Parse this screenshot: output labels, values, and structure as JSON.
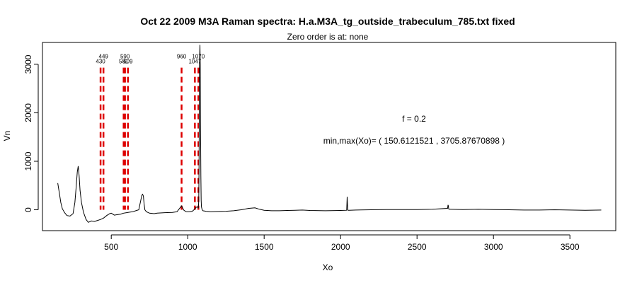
{
  "chart_data": {
    "type": "line",
    "title": "Oct 22 2009 M3A Raman spectra: H.a.M3A_tg_outside_trabeculum_785.txt fixed",
    "subtitle": "Zero order is at:  none",
    "xlabel": "Xo",
    "ylabel": "Vn",
    "xlim": [
      50,
      3800
    ],
    "ylim": [
      -430,
      3450
    ],
    "x_ticks": [
      500,
      1000,
      1500,
      2000,
      2500,
      3000,
      3500
    ],
    "y_ticks": [
      0,
      1000,
      2000,
      3000
    ],
    "annotations": {
      "f_text": "f =  0.2",
      "minmax_text": "min,max(Xo)= ( 150.6121521 , 3705.87670898 )"
    },
    "peak_color": "#dd0000",
    "line_color": "#000000",
    "peaks": [
      {
        "x": 430,
        "label": "430"
      },
      {
        "x": 449,
        "label": "449"
      },
      {
        "x": 581,
        "label": "581"
      },
      {
        "x": 590,
        "label": "590"
      },
      {
        "x": 609,
        "label": "609"
      },
      {
        "x": 960,
        "label": "960"
      },
      {
        "x": 1047,
        "label": "1047"
      },
      {
        "x": 1070,
        "label": "1070"
      }
    ],
    "series": [
      {
        "x": [
          150,
          160,
          170,
          180,
          195,
          210,
          230,
          250,
          262,
          270,
          278,
          284,
          290,
          296,
          305,
          318,
          335,
          350,
          370,
          390,
          410,
          430,
          450,
          470,
          490,
          500,
          510,
          520,
          540,
          560,
          580,
          600,
          620,
          640,
          660,
          680,
          700,
          705,
          710,
          715,
          720,
          730,
          750,
          780,
          800,
          850,
          900,
          930,
          945,
          955,
          960,
          965,
          975,
          990,
          1010,
          1030,
          1045,
          1050,
          1055,
          1060,
          1065,
          1070,
          1072,
          1074,
          1076,
          1078,
          1080,
          1082,
          1084,
          1086,
          1088,
          1090,
          1095,
          1100,
          1120,
          1150,
          1200,
          1250,
          1300,
          1350,
          1400,
          1440,
          1470,
          1500,
          1550,
          1600,
          1650,
          1700,
          1750,
          1800,
          1900,
          2000,
          2040,
          2043,
          2045,
          2047,
          2050,
          2055,
          2100,
          2200,
          2300,
          2400,
          2500,
          2600,
          2650,
          2700,
          2703,
          2705,
          2707,
          2710,
          2715,
          2800,
          2900,
          3000,
          3100,
          3200,
          3300,
          3400,
          3500,
          3600,
          3705
        ],
        "y": [
          550,
          350,
          150,
          20,
          -60,
          -120,
          -130,
          -80,
          150,
          450,
          780,
          900,
          700,
          400,
          150,
          -50,
          -200,
          -260,
          -230,
          -240,
          -220,
          -200,
          -170,
          -120,
          -80,
          -70,
          -90,
          -110,
          -100,
          -90,
          -70,
          -60,
          -50,
          -40,
          -20,
          0,
          300,
          320,
          280,
          120,
          0,
          -40,
          -70,
          -80,
          -70,
          -60,
          -55,
          -40,
          20,
          60,
          80,
          50,
          -10,
          -40,
          -40,
          -30,
          10,
          30,
          50,
          60,
          50,
          40,
          200,
          900,
          2000,
          3100,
          3400,
          3000,
          1800,
          700,
          200,
          60,
          0,
          -20,
          -30,
          -40,
          -35,
          -30,
          -20,
          0,
          30,
          40,
          10,
          -10,
          -20,
          -20,
          -15,
          -10,
          -5,
          -15,
          -20,
          -15,
          -10,
          270,
          130,
          -5,
          -10,
          -10,
          -5,
          0,
          5,
          5,
          5,
          10,
          20,
          30,
          100,
          80,
          20,
          10,
          10,
          5,
          10,
          5,
          0,
          -5,
          -5,
          0,
          -5,
          -10,
          -5
        ]
      }
    ]
  }
}
